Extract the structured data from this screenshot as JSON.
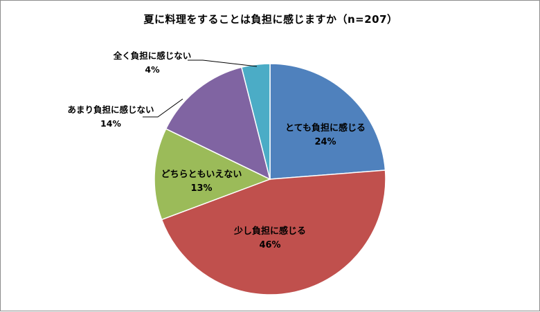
{
  "chart_data": {
    "type": "pie",
    "title": "夏に料理をすることは負担に感じますか（n=207）",
    "slices": [
      {
        "label": "とても負担に感じる",
        "pct_label": "24%",
        "value": 24,
        "color": "#4F81BD"
      },
      {
        "label": "少し負担に感じる",
        "pct_label": "46%",
        "value": 46,
        "color": "#C0504D"
      },
      {
        "label": "どちらともいえない",
        "pct_label": "13%",
        "value": 13,
        "color": "#9BBB59"
      },
      {
        "label": "あまり負担に感じない",
        "pct_label": "14%",
        "value": 14,
        "color": "#8064A2"
      },
      {
        "label": "全く負担に感じない",
        "pct_label": "4%",
        "value": 4,
        "color": "#4BACC6"
      }
    ],
    "start_angle": "top",
    "direction": "clockwise",
    "legend": "none"
  }
}
